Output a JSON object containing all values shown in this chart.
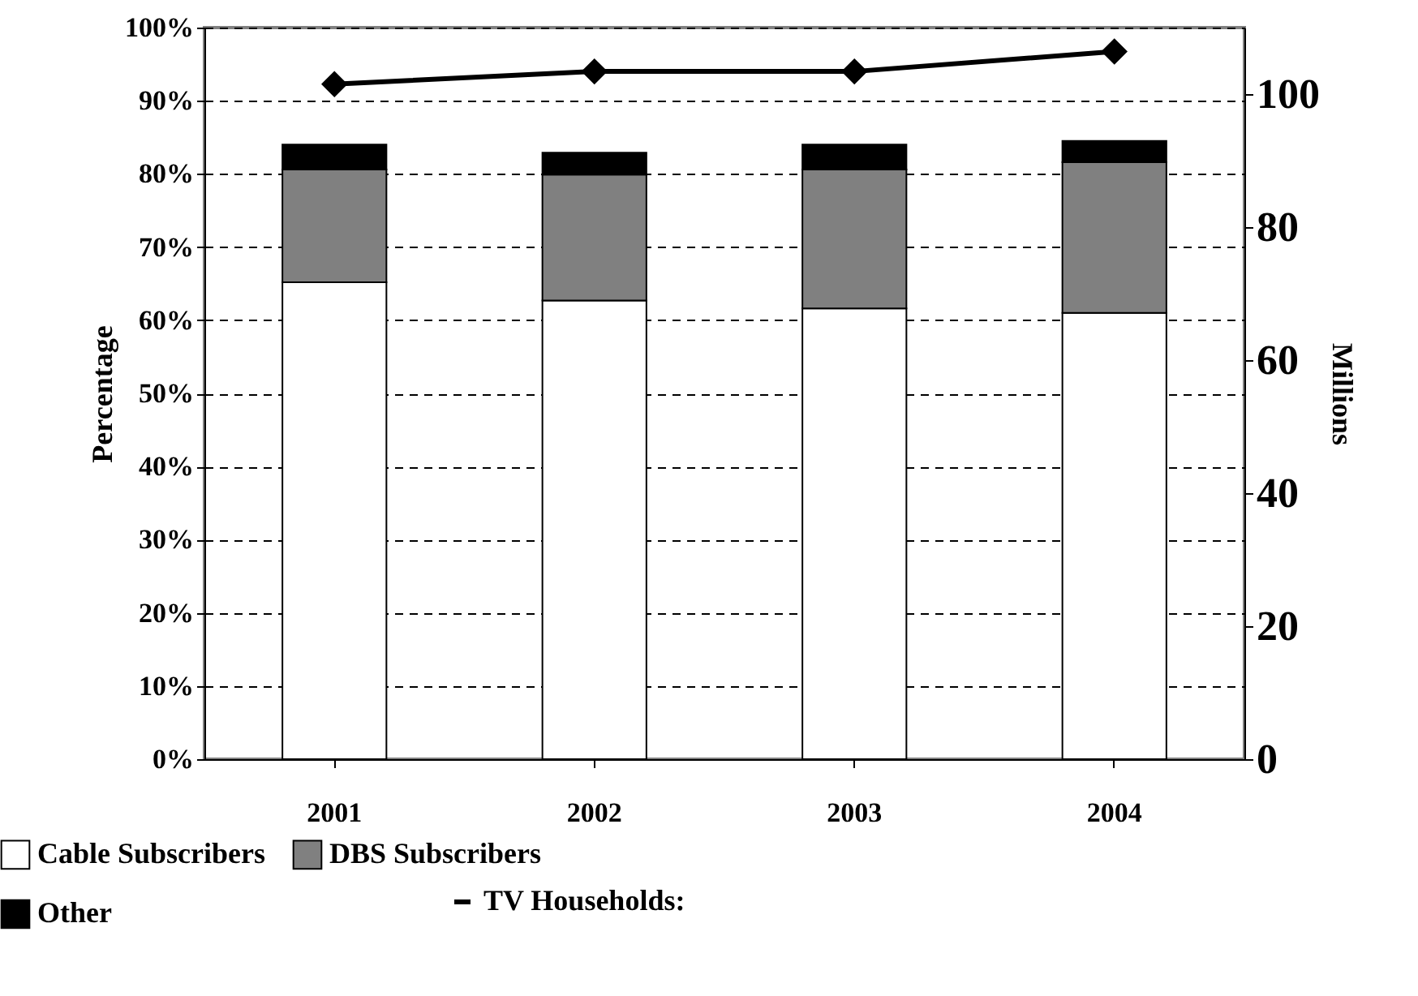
{
  "chart_data": {
    "type": "bar",
    "stacked": true,
    "categories": [
      "2001",
      "2002",
      "2003",
      "2004"
    ],
    "series": [
      {
        "name": "Cable Subscribers",
        "color": "#ffffff",
        "values": [
          65.2,
          62.7,
          61.6,
          61.0
        ]
      },
      {
        "name": "DBS Subscribers",
        "color": "#808080",
        "values": [
          15.4,
          17.2,
          19.0,
          20.6
        ]
      },
      {
        "name": "Other",
        "color": "#000000",
        "values": [
          3.4,
          3.0,
          3.4,
          2.9
        ]
      },
      {
        "name": "TV Households:",
        "type": "line",
        "axis": "y2",
        "color": "#000000",
        "marker": "diamond",
        "values": [
          101.5,
          103.4,
          103.4,
          106.4
        ]
      }
    ],
    "ylabel": "Percentage",
    "y2label": "Millions",
    "ylim": [
      0,
      100
    ],
    "yticks": [
      {
        "value": 0,
        "label": "0%"
      },
      {
        "value": 10,
        "label": "10%"
      },
      {
        "value": 20,
        "label": "20%"
      },
      {
        "value": 30,
        "label": "30%"
      },
      {
        "value": 40,
        "label": "40%"
      },
      {
        "value": 50,
        "label": "50%"
      },
      {
        "value": 60,
        "label": "60%"
      },
      {
        "value": 70,
        "label": "70%"
      },
      {
        "value": 80,
        "label": "80%"
      },
      {
        "value": 90,
        "label": "90%"
      },
      {
        "value": 100,
        "label": "100%"
      }
    ],
    "y2lim": [
      0,
      110
    ],
    "y2ticks": [
      0,
      20,
      40,
      60,
      80,
      100
    ],
    "grid": "y",
    "legend": "bottom"
  }
}
